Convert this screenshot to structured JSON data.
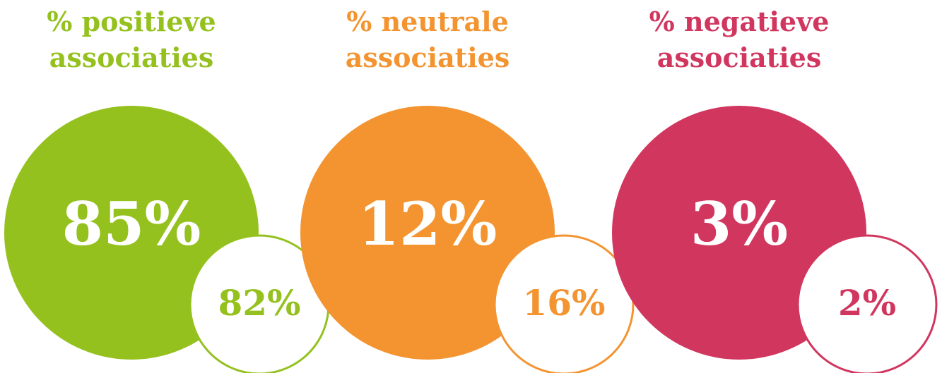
{
  "groups": [
    {
      "title_line1": "% positieve",
      "title_line2": "associaties",
      "main": "85%",
      "secondary": "82%",
      "color": "#95c11f"
    },
    {
      "title_line1": "% neutrale",
      "title_line2": "associaties",
      "main": "12%",
      "secondary": "16%",
      "color": "#f39431"
    },
    {
      "title_line1": "% negatieve",
      "title_line2": "associaties",
      "main": "3%",
      "secondary": "2%",
      "color": "#d1365f"
    }
  ]
}
